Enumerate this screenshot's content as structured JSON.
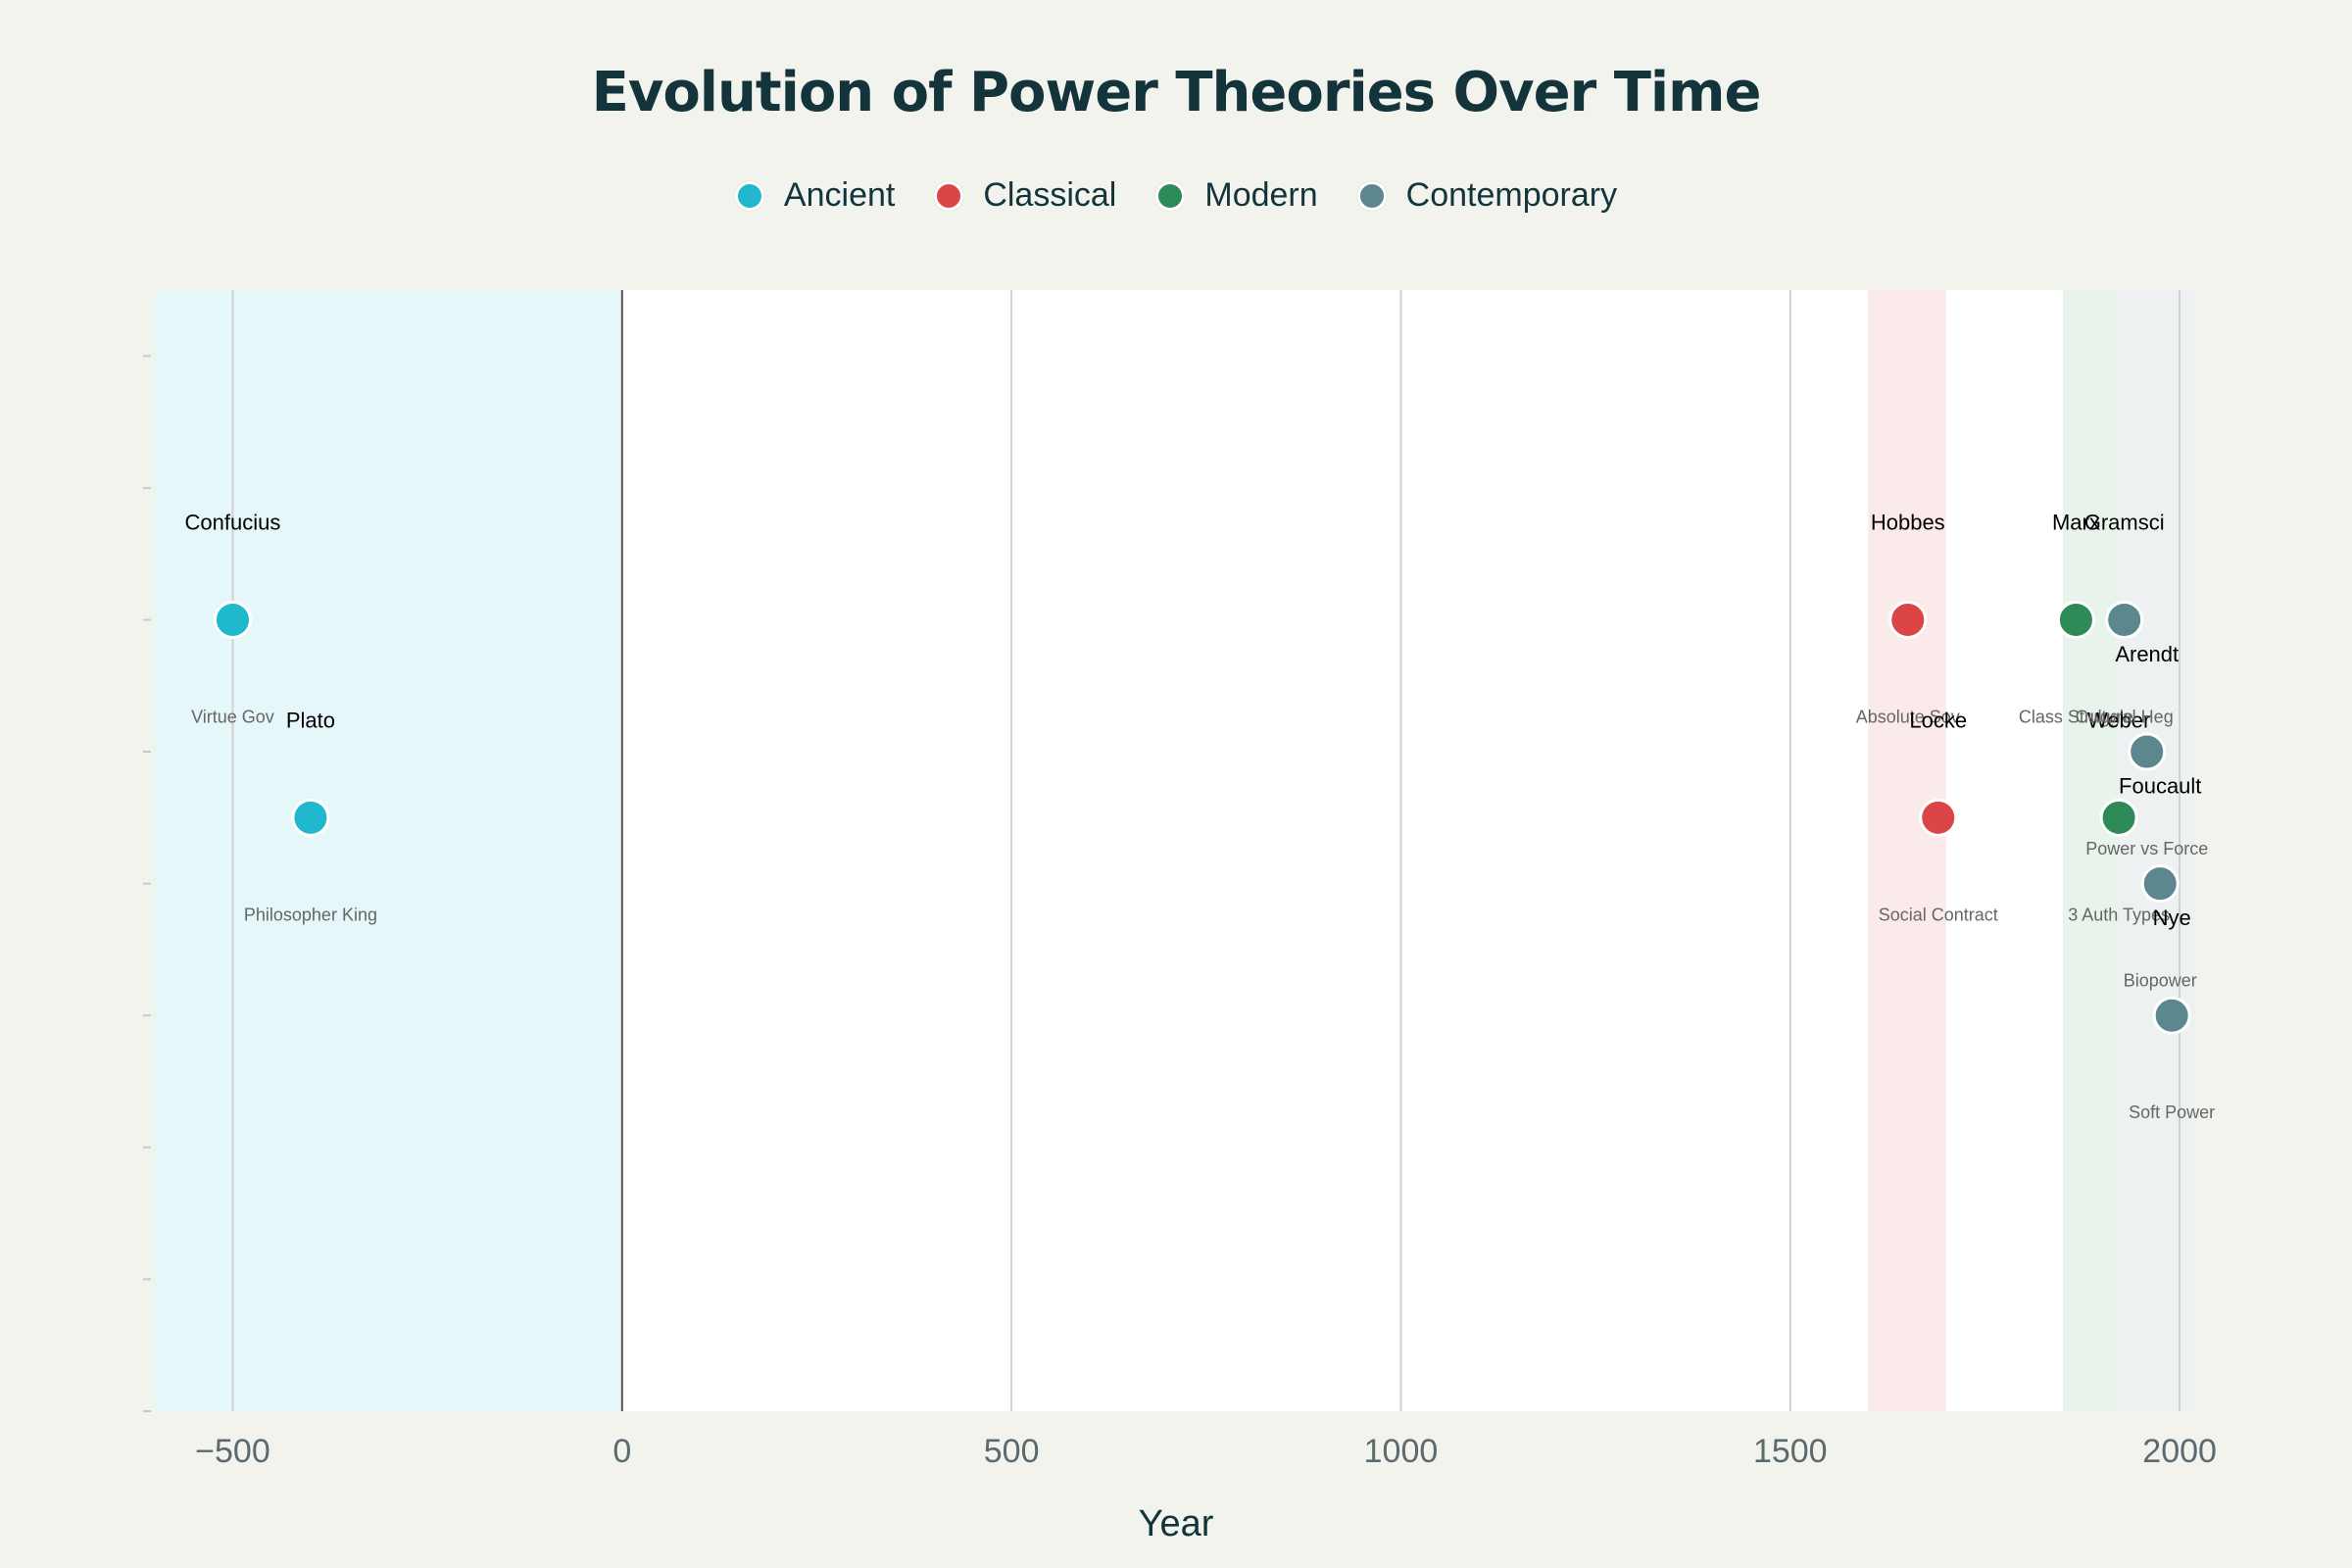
{
  "chart_data": {
    "type": "scatter",
    "title": "Evolution of Power Theories Over Time",
    "xlabel": "Year",
    "ylabel": "",
    "xlim": [
      -600,
      2020
    ],
    "ylim": [
      0,
      8.5
    ],
    "x_ticks": [
      -500,
      0,
      500,
      1000,
      1500,
      2000
    ],
    "x_tick_labels": [
      "−500",
      "0",
      "500",
      "1000",
      "1500",
      "2000"
    ],
    "y_ticks": [
      0,
      1,
      2,
      3,
      4,
      5,
      6,
      7,
      8
    ],
    "grid": true,
    "legend_placement": "top-center",
    "eras": [
      {
        "name": "Ancient",
        "start": -600,
        "end": 0,
        "color": "#e6f7fa"
      },
      {
        "name": "Classical",
        "start": 1600,
        "end": 1700,
        "color": "#fbeaea"
      },
      {
        "name": "Modern",
        "start": 1850,
        "end": 1920,
        "color": "#e8f3ec"
      },
      {
        "name": "Contemporary",
        "start": 1920,
        "end": 2020,
        "color": "#eef1f2"
      }
    ],
    "series": [
      {
        "name": "Ancient",
        "color": "#1fb8cd",
        "points": [
          {
            "x": -500,
            "y": 6,
            "name": "Confucius",
            "concept": "Virtue Gov"
          },
          {
            "x": -400,
            "y": 4.5,
            "name": "Plato",
            "concept": "Philosopher King"
          }
        ]
      },
      {
        "name": "Classical",
        "color": "#db4545",
        "points": [
          {
            "x": 1651,
            "y": 6,
            "name": "Hobbes",
            "concept": "Absolute Sov"
          },
          {
            "x": 1690,
            "y": 4.5,
            "name": "Locke",
            "concept": "Social Contract"
          }
        ]
      },
      {
        "name": "Modern",
        "color": "#2e8b57",
        "points": [
          {
            "x": 1867,
            "y": 6,
            "name": "Marx",
            "concept": "Class Struggle"
          },
          {
            "x": 1922,
            "y": 4.5,
            "name": "Weber",
            "concept": "3 Auth Types"
          }
        ]
      },
      {
        "name": "Contemporary",
        "color": "#5d878f",
        "points": [
          {
            "x": 1929,
            "y": 6,
            "name": "Gramsci",
            "concept": "Cultural Heg"
          },
          {
            "x": 1958,
            "y": 5,
            "name": "Arendt",
            "concept": "Power vs Force"
          },
          {
            "x": 1975,
            "y": 4,
            "name": "Foucault",
            "concept": "Biopower"
          },
          {
            "x": 1990,
            "y": 3,
            "name": "Nye",
            "concept": "Soft Power"
          }
        ]
      }
    ]
  }
}
